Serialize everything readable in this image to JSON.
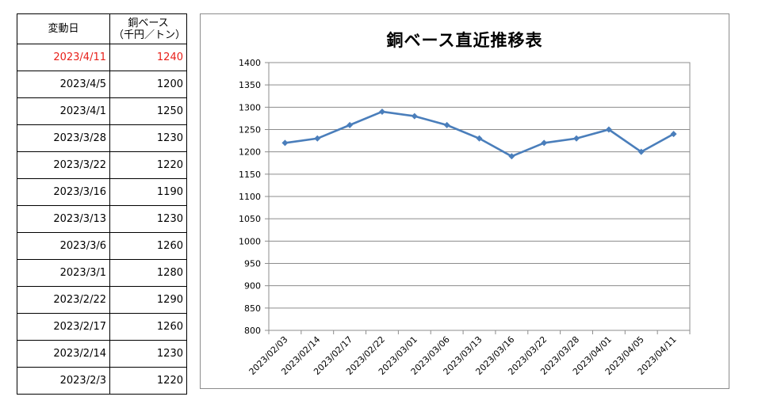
{
  "table": {
    "header_date": "変動日",
    "header_price_line1": "銅ベース",
    "header_price_line2": "（千円／トン）",
    "rows": [
      {
        "date": "2023/4/11",
        "price": "1240",
        "highlight": true
      },
      {
        "date": "2023/4/5",
        "price": "1200"
      },
      {
        "date": "2023/4/1",
        "price": "1250"
      },
      {
        "date": "2023/3/28",
        "price": "1230"
      },
      {
        "date": "2023/3/22",
        "price": "1220"
      },
      {
        "date": "2023/3/16",
        "price": "1190"
      },
      {
        "date": "2023/3/13",
        "price": "1230"
      },
      {
        "date": "2023/3/6",
        "price": "1260"
      },
      {
        "date": "2023/3/1",
        "price": "1280"
      },
      {
        "date": "2023/2/22",
        "price": "1290"
      },
      {
        "date": "2023/2/17",
        "price": "1260"
      },
      {
        "date": "2023/2/14",
        "price": "1230"
      },
      {
        "date": "2023/2/3",
        "price": "1220"
      }
    ],
    "highlight_color": "#e8201a"
  },
  "chart_data": {
    "type": "line",
    "title": "銅ベース直近推移表",
    "xlabel": "",
    "ylabel": "",
    "categories": [
      "2023/02/03",
      "2023/02/14",
      "2023/02/17",
      "2023/02/22",
      "2023/03/01",
      "2023/03/06",
      "2023/03/13",
      "2023/03/16",
      "2023/03/22",
      "2023/03/28",
      "2023/04/01",
      "2023/04/05",
      "2023/04/11"
    ],
    "values": [
      1220,
      1230,
      1260,
      1290,
      1280,
      1260,
      1230,
      1190,
      1220,
      1230,
      1250,
      1200,
      1240
    ],
    "ylim": [
      800,
      1400
    ],
    "yticks": [
      800,
      850,
      900,
      950,
      1000,
      1050,
      1100,
      1150,
      1200,
      1250,
      1300,
      1350,
      1400
    ],
    "grid": true,
    "legend": "none",
    "line_color": "#4a7ebb",
    "marker": "diamond"
  }
}
